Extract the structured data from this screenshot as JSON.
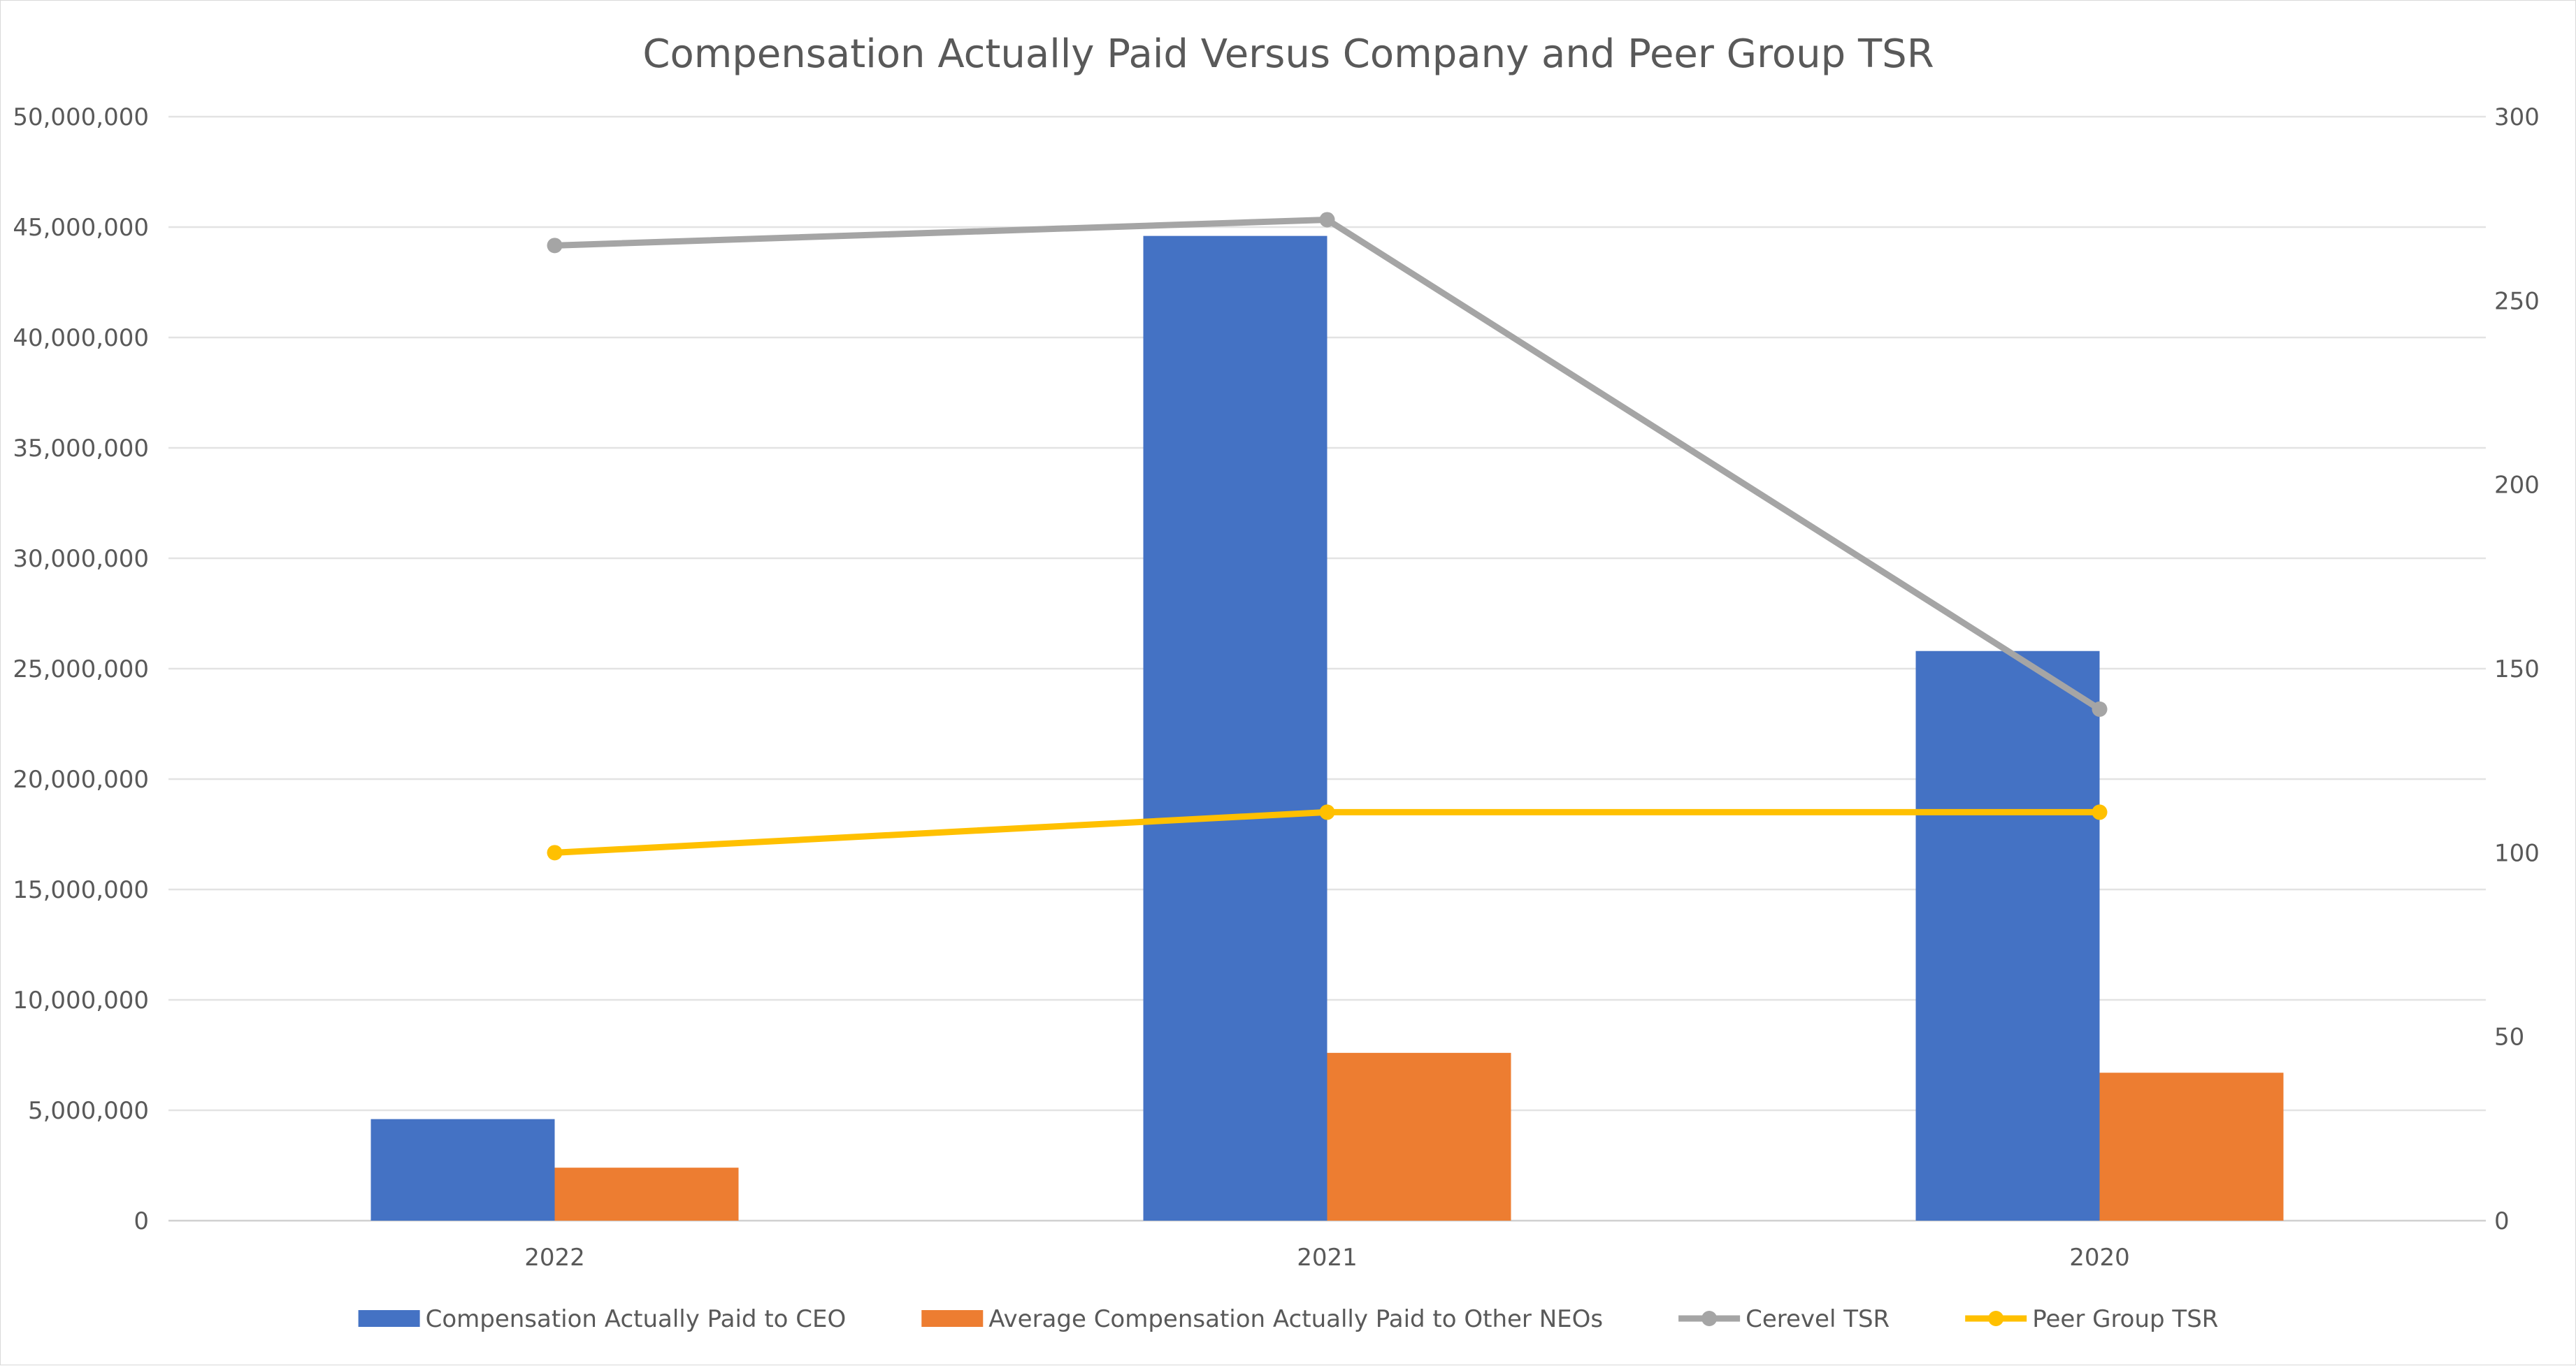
{
  "chart_data": {
    "type": "bar",
    "title": "Compensation Actually Paid Versus Company and Peer Group TSR",
    "categories": [
      "2022",
      "2021",
      "2020"
    ],
    "left_axis": {
      "ylim": [
        0,
        50000000
      ],
      "tick_values": [
        0,
        5000000,
        10000000,
        15000000,
        20000000,
        25000000,
        30000000,
        35000000,
        40000000,
        45000000,
        50000000
      ],
      "tick_labels": [
        "0",
        "5,000,000",
        "10,000,000",
        "15,000,000",
        "20,000,000",
        "25,000,000",
        "30,000,000",
        "35,000,000",
        "40,000,000",
        "45,000,000",
        "50,000,000"
      ]
    },
    "right_axis": {
      "ylim": [
        0,
        300
      ],
      "tick_values": [
        0,
        50,
        100,
        150,
        200,
        250,
        300
      ],
      "tick_labels": [
        "0",
        "50",
        "100",
        "150",
        "200",
        "250",
        "300"
      ]
    },
    "grid": true,
    "legend_position": "bottom",
    "series": [
      {
        "name": "Compensation Actually Paid to CEO",
        "kind": "bar",
        "axis": "left",
        "color": "#4472C4",
        "values": [
          4600000,
          44600000,
          25800000
        ]
      },
      {
        "name": "Average Compensation Actually Paid to Other NEOs",
        "kind": "bar",
        "axis": "left",
        "color": "#ED7D31",
        "values": [
          2400000,
          7600000,
          6700000
        ]
      },
      {
        "name": "Cerevel TSR",
        "kind": "line",
        "axis": "right",
        "color": "#A5A5A5",
        "values": [
          265,
          272,
          139
        ]
      },
      {
        "name": "Peer Group TSR",
        "kind": "line",
        "axis": "right",
        "color": "#FFC000",
        "values": [
          100,
          111,
          111
        ]
      }
    ]
  }
}
